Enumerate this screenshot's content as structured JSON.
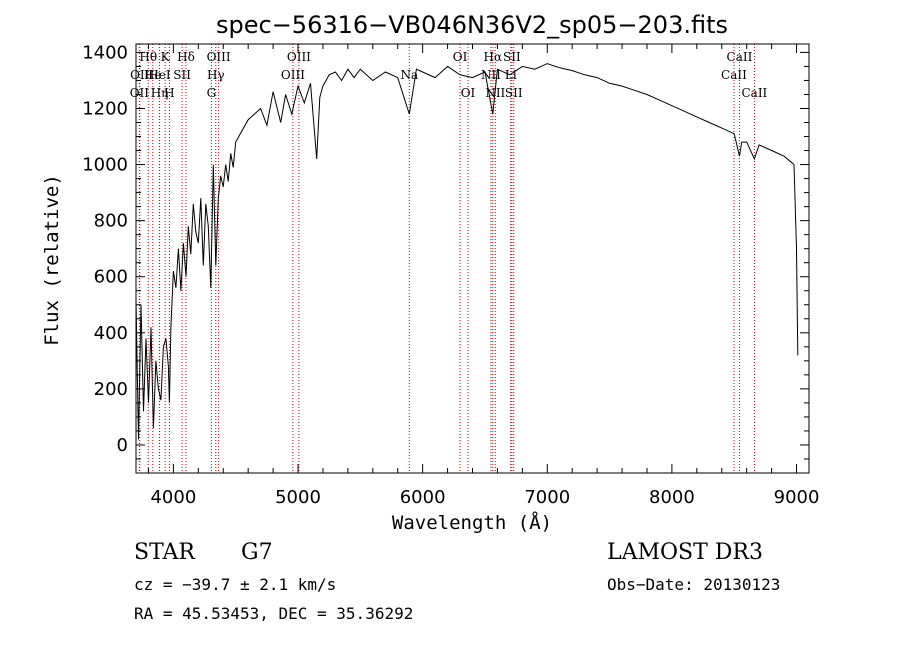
{
  "chart_data": {
    "type": "line",
    "title": "spec−56316−VB046N36V2_sp05−203.fits",
    "xlabel": "Wavelength (Å)",
    "ylabel": "Flux (relative)",
    "xlim": [
      3700,
      9100
    ],
    "ylim": [
      -100,
      1430
    ],
    "xticks": [
      4000,
      5000,
      6000,
      7000,
      8000,
      9000
    ],
    "yticks": [
      0,
      200,
      400,
      600,
      800,
      1000,
      1200,
      1400
    ],
    "series": [
      {
        "name": "flux",
        "x": [
          3700,
          3720,
          3740,
          3760,
          3780,
          3800,
          3820,
          3840,
          3860,
          3880,
          3900,
          3920,
          3940,
          3960,
          3968,
          3980,
          4000,
          4020,
          4040,
          4060,
          4080,
          4101,
          4120,
          4140,
          4160,
          4180,
          4200,
          4220,
          4240,
          4260,
          4280,
          4300,
          4320,
          4340,
          4360,
          4380,
          4400,
          4420,
          4440,
          4460,
          4480,
          4500,
          4550,
          4600,
          4650,
          4700,
          4750,
          4800,
          4861,
          4900,
          4950,
          5000,
          5050,
          5100,
          5150,
          5175,
          5200,
          5250,
          5300,
          5350,
          5400,
          5450,
          5500,
          5600,
          5700,
          5800,
          5893,
          5950,
          6000,
          6100,
          6200,
          6300,
          6400,
          6500,
          6563,
          6600,
          6700,
          6800,
          6900,
          7000,
          7100,
          7200,
          7300,
          7400,
          7500,
          7600,
          7700,
          7800,
          7900,
          8000,
          8100,
          8200,
          8300,
          8400,
          8500,
          8542,
          8560,
          8600,
          8662,
          8700,
          8800,
          8900,
          8980,
          9000,
          9010
        ],
        "values": [
          520,
          20,
          500,
          120,
          380,
          150,
          420,
          60,
          300,
          200,
          160,
          350,
          380,
          280,
          150,
          420,
          620,
          560,
          700,
          550,
          720,
          600,
          780,
          680,
          860,
          760,
          720,
          880,
          640,
          860,
          780,
          560,
          1000,
          640,
          880,
          960,
          920,
          1000,
          940,
          1040,
          990,
          1080,
          1120,
          1160,
          1180,
          1200,
          1140,
          1260,
          1150,
          1250,
          1180,
          1280,
          1220,
          1290,
          1020,
          1240,
          1280,
          1320,
          1330,
          1300,
          1340,
          1310,
          1340,
          1300,
          1330,
          1310,
          1180,
          1340,
          1330,
          1310,
          1350,
          1320,
          1310,
          1330,
          1180,
          1340,
          1320,
          1350,
          1340,
          1360,
          1345,
          1335,
          1320,
          1310,
          1290,
          1280,
          1265,
          1250,
          1230,
          1210,
          1190,
          1170,
          1150,
          1130,
          1110,
          1030,
          1080,
          1080,
          1020,
          1070,
          1050,
          1030,
          1000,
          700,
          320
        ]
      }
    ],
    "lines": [
      {
        "label": "OII",
        "x": 3727,
        "row": 2
      },
      {
        "label": "Hθ",
        "x": 3798,
        "row": 0
      },
      {
        "label": "OII",
        "x": 3730,
        "row": 1
      },
      {
        "label": "He",
        "x": 3835,
        "row": 1
      },
      {
        "label": "Hη",
        "x": 3889,
        "row": 2
      },
      {
        "label": "K",
        "x": 3934,
        "row": 0
      },
      {
        "label": "HeI",
        "x": 3888,
        "row": 1
      },
      {
        "label": "SII",
        "x": 4070,
        "row": 1
      },
      {
        "label": "H",
        "x": 3968,
        "row": 2
      },
      {
        "label": "Hδ",
        "x": 4101,
        "row": 0
      },
      {
        "label": "OIII",
        "x": 4363,
        "row": 0
      },
      {
        "label": "Hγ",
        "x": 4340,
        "row": 1
      },
      {
        "label": "G",
        "x": 4305,
        "row": 2
      },
      {
        "label": "OIII",
        "x": 5007,
        "row": 0
      },
      {
        "label": "OIII",
        "x": 4959,
        "row": 1
      },
      {
        "label": "Na",
        "x": 5893,
        "row": 1
      },
      {
        "label": "OI",
        "x": 6300,
        "row": 0
      },
      {
        "label": "OI",
        "x": 6364,
        "row": 2
      },
      {
        "label": "Hα",
        "x": 6563,
        "row": 0
      },
      {
        "label": "SII",
        "x": 6716,
        "row": 0
      },
      {
        "label": "NII",
        "x": 6548,
        "row": 1
      },
      {
        "label": "Li",
        "x": 6707,
        "row": 1
      },
      {
        "label": "NII",
        "x": 6583,
        "row": 2
      },
      {
        "label": "SII",
        "x": 6731,
        "row": 2
      },
      {
        "label": "CaII",
        "x": 8542,
        "row": 0
      },
      {
        "label": "CaII",
        "x": 8498,
        "row": 1
      },
      {
        "label": "CaII",
        "x": 8662,
        "row": 2
      }
    ],
    "line_color": "#cc0000"
  },
  "info": {
    "object": "STAR",
    "subclass": "G7",
    "survey": "LAMOST DR3",
    "cz": "cz = −39.7 ± 2.1 km/s",
    "obsdate": "Obs−Date: 20130123",
    "radec": "RA =  45.53453, DEC =  35.36292"
  }
}
